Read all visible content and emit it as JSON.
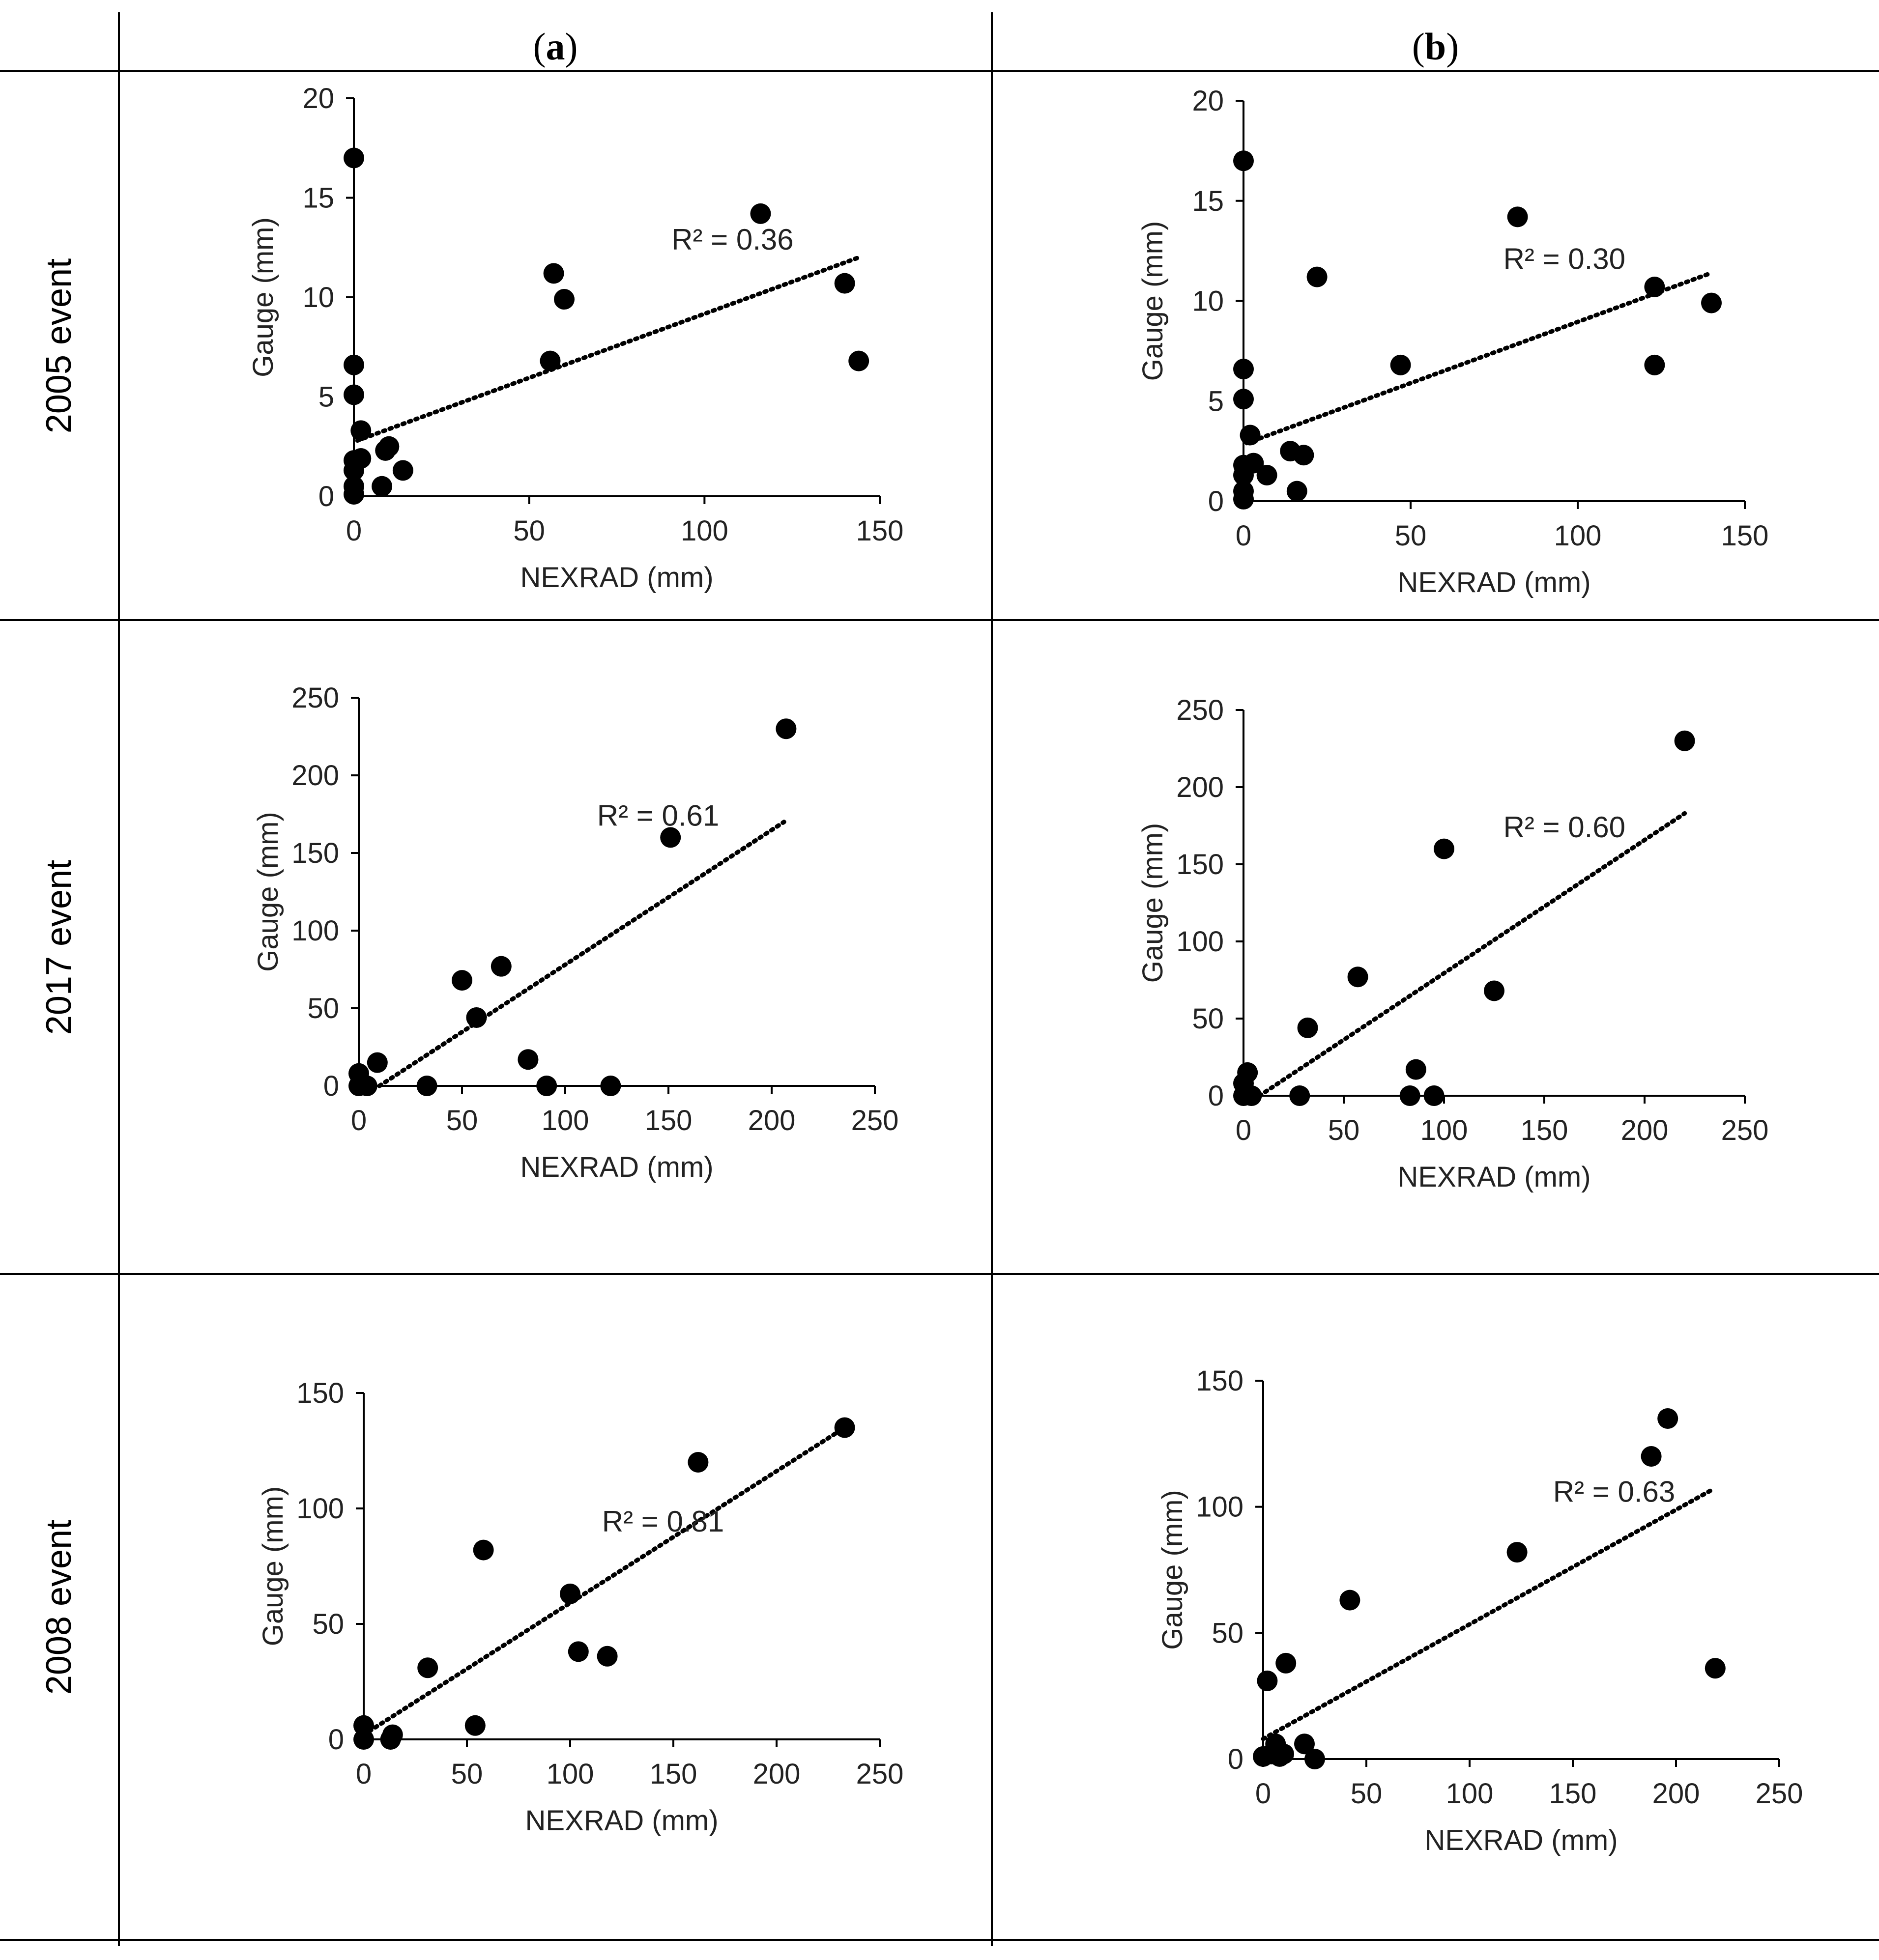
{
  "columns": [
    {
      "open": "(",
      "letter": "a",
      "close": ")"
    },
    {
      "open": "(",
      "letter": "b",
      "close": ")"
    }
  ],
  "rows": [
    "2005 event",
    "2017 event",
    "2008 event"
  ],
  "chart_data": [
    {
      "id": "2005-a",
      "type": "scatter",
      "xlabel": "NEXRAD (mm)",
      "ylabel": "Gauge (mm)",
      "xlim": [
        0,
        150
      ],
      "ylim": [
        0,
        20
      ],
      "xticks": [
        0,
        50,
        100,
        150
      ],
      "yticks": [
        0,
        5,
        10,
        15,
        20
      ],
      "annotation": "R² = 0.36",
      "trendline": {
        "style": "dotted",
        "x": [
          1,
          144
        ],
        "y": [
          2.8,
          12.0
        ]
      },
      "points": [
        [
          0,
          17
        ],
        [
          0,
          6.6
        ],
        [
          0,
          5.1
        ],
        [
          0,
          1.8
        ],
        [
          0,
          1.3
        ],
        [
          0,
          0.5
        ],
        [
          0,
          0.1
        ],
        [
          2,
          3.3
        ],
        [
          2,
          1.9
        ],
        [
          8,
          0.5
        ],
        [
          9,
          2.3
        ],
        [
          10,
          2.5
        ],
        [
          14,
          1.3
        ],
        [
          56,
          6.8
        ],
        [
          57,
          11.2
        ],
        [
          60,
          9.9
        ],
        [
          116,
          14.2
        ],
        [
          140,
          10.7
        ],
        [
          144,
          6.8
        ]
      ]
    },
    {
      "id": "2005-b",
      "type": "scatter",
      "xlabel": "NEXRAD (mm)",
      "ylabel": "Gauge (mm)",
      "xlim": [
        0,
        150
      ],
      "ylim": [
        0,
        20
      ],
      "xticks": [
        0,
        50,
        100,
        150
      ],
      "yticks": [
        0,
        5,
        10,
        15,
        20
      ],
      "annotation": "R² = 0.30",
      "trendline": {
        "style": "dotted",
        "x": [
          1,
          140
        ],
        "y": [
          2.9,
          11.4
        ]
      },
      "points": [
        [
          0,
          17
        ],
        [
          0,
          6.6
        ],
        [
          0,
          5.1
        ],
        [
          0,
          1.8
        ],
        [
          0,
          1.3
        ],
        [
          0,
          0.5
        ],
        [
          0,
          0.1
        ],
        [
          2,
          3.3
        ],
        [
          3,
          1.9
        ],
        [
          7,
          1.3
        ],
        [
          14,
          2.5
        ],
        [
          16,
          0.5
        ],
        [
          18,
          2.3
        ],
        [
          22,
          11.2
        ],
        [
          47,
          6.8
        ],
        [
          82,
          14.2
        ],
        [
          123,
          10.7
        ],
        [
          123,
          6.8
        ],
        [
          140,
          9.9
        ]
      ]
    },
    {
      "id": "2017-a",
      "type": "scatter",
      "xlabel": "NEXRAD (mm)",
      "ylabel": "Gauge (mm)",
      "xlim": [
        0,
        250
      ],
      "ylim": [
        0,
        250
      ],
      "xticks": [
        0,
        50,
        100,
        150,
        200,
        250
      ],
      "yticks": [
        0,
        50,
        100,
        150,
        200,
        250
      ],
      "annotation": "R² = 0.61",
      "trendline": {
        "style": "dotted",
        "x": [
          10,
          206
        ],
        "y": [
          0,
          170
        ]
      },
      "points": [
        [
          0,
          0
        ],
        [
          0,
          8
        ],
        [
          4,
          0
        ],
        [
          9,
          15
        ],
        [
          33,
          0
        ],
        [
          50,
          68
        ],
        [
          57,
          44
        ],
        [
          69,
          77
        ],
        [
          82,
          17
        ],
        [
          91,
          0
        ],
        [
          122,
          0
        ],
        [
          151,
          160
        ],
        [
          207,
          230
        ]
      ]
    },
    {
      "id": "2017-b",
      "type": "scatter",
      "xlabel": "NEXRAD (mm)",
      "ylabel": "Gauge (mm)",
      "xlim": [
        0,
        250
      ],
      "ylim": [
        0,
        250
      ],
      "xticks": [
        0,
        50,
        100,
        150,
        200,
        250
      ],
      "yticks": [
        0,
        50,
        100,
        150,
        200,
        250
      ],
      "annotation": "R² = 0.60",
      "trendline": {
        "style": "dotted",
        "x": [
          8,
          220
        ],
        "y": [
          0,
          183
        ]
      },
      "points": [
        [
          0,
          0
        ],
        [
          0,
          8
        ],
        [
          2,
          15
        ],
        [
          4,
          0
        ],
        [
          28,
          0
        ],
        [
          32,
          44
        ],
        [
          57,
          77
        ],
        [
          83,
          0
        ],
        [
          86,
          17
        ],
        [
          95,
          0
        ],
        [
          100,
          160
        ],
        [
          125,
          68
        ],
        [
          220,
          230
        ]
      ]
    },
    {
      "id": "2008-a",
      "type": "scatter",
      "xlabel": "NEXRAD (mm)",
      "ylabel": "Gauge (mm)",
      "xlim": [
        0,
        250
      ],
      "ylim": [
        0,
        150
      ],
      "xticks": [
        0,
        50,
        100,
        150,
        200,
        250
      ],
      "yticks": [
        0,
        50,
        100,
        150
      ],
      "annotation": "R² = 0.81",
      "trendline": {
        "style": "dotted",
        "x": [
          0,
          233
        ],
        "y": [
          2,
          135
        ]
      },
      "points": [
        [
          0,
          0
        ],
        [
          0,
          6
        ],
        [
          13,
          0
        ],
        [
          14,
          2
        ],
        [
          31,
          31
        ],
        [
          54,
          6
        ],
        [
          58,
          82
        ],
        [
          100,
          63
        ],
        [
          104,
          38
        ],
        [
          118,
          36
        ],
        [
          162,
          120
        ],
        [
          233,
          135
        ]
      ]
    },
    {
      "id": "2008-b",
      "type": "scatter",
      "xlabel": "NEXRAD (mm)",
      "ylabel": "Gauge (mm)",
      "xlim": [
        0,
        250
      ],
      "ylim": [
        0,
        150
      ],
      "xticks": [
        0,
        50,
        100,
        150,
        200,
        250
      ],
      "yticks": [
        0,
        50,
        100,
        150
      ],
      "annotation": "R² = 0.63",
      "trendline": {
        "style": "dotted",
        "x": [
          0,
          218
        ],
        "y": [
          8,
          107
        ]
      },
      "points": [
        [
          0,
          1
        ],
        [
          2,
          31
        ],
        [
          4,
          2
        ],
        [
          6,
          6
        ],
        [
          8,
          1
        ],
        [
          10,
          2
        ],
        [
          11,
          38
        ],
        [
          20,
          6
        ],
        [
          25,
          0
        ],
        [
          42,
          63
        ],
        [
          123,
          82
        ],
        [
          188,
          120
        ],
        [
          196,
          135
        ],
        [
          219,
          36
        ]
      ]
    }
  ]
}
